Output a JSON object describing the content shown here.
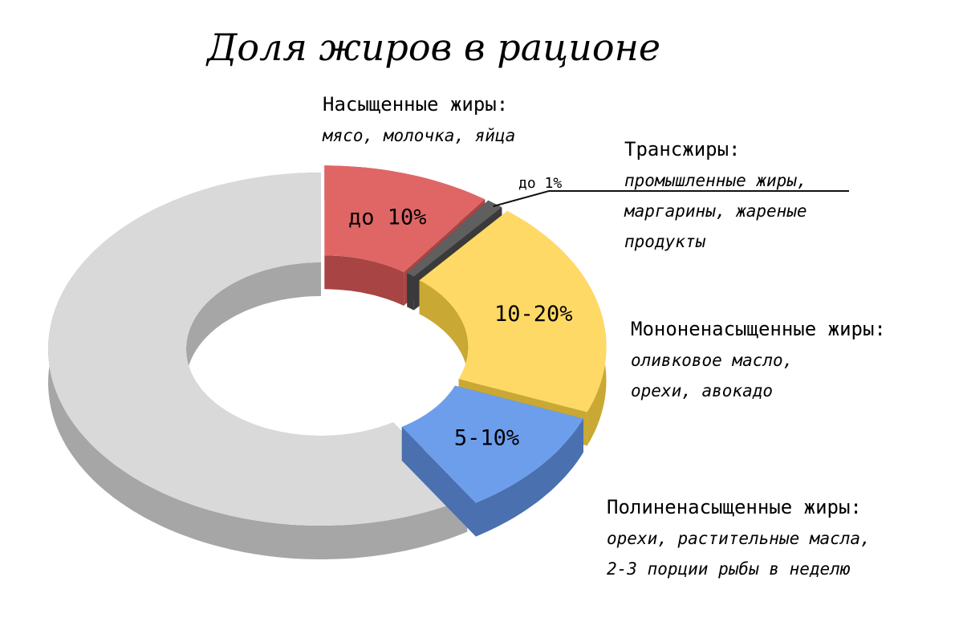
{
  "chart_data": {
    "type": "pie",
    "style": "3d-donut-exploded",
    "title": "Доля жиров в рационе",
    "slices": [
      {
        "label": "до 10%",
        "name": "Насыщенные жиры:",
        "lines": [
          "мясо, молочка, яйца"
        ],
        "value": 10,
        "color": "#e06666",
        "side": "#a84444"
      },
      {
        "label": "до 1%",
        "name": "Трансжиры:",
        "lines": [
          "промышленные жиры,",
          "маргарины, жареные",
          "продукты"
        ],
        "value": 1,
        "color": "#5f5f5f",
        "side": "#3a3a3a"
      },
      {
        "label": "10-20%",
        "name": "Мононенасыщенные жиры:",
        "lines": [
          "оливковое масло,",
          "орехи, авокадо"
        ],
        "value": 20,
        "color": "#ffd966",
        "side": "#c9a834"
      },
      {
        "label": "5-10%",
        "name": "Полиненасыщенные жиры:",
        "lines": [
          "орехи, растительные масла,",
          "2-3 порции рыбы в неделю"
        ],
        "value": 10,
        "color": "#6d9eeb",
        "side": "#4a70b0"
      },
      {
        "label": "",
        "name": "",
        "lines": [],
        "value": 59,
        "color": "#d9d9d9",
        "side": "#a6a6a6"
      }
    ]
  }
}
